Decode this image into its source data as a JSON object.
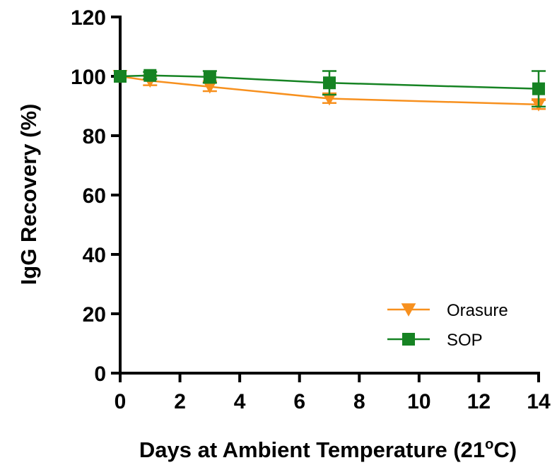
{
  "chart_data": {
    "type": "line",
    "xlabel": "Days at Ambient Temperature (21",
    "xlabel_sup": "o",
    "xlabel_end": "C)",
    "ylabel": "IgG Recovery (%)",
    "xlim": [
      0,
      14
    ],
    "ylim": [
      0,
      120
    ],
    "xticks": [
      0,
      2,
      4,
      6,
      8,
      10,
      12,
      14
    ],
    "yticks": [
      0,
      20,
      40,
      60,
      80,
      100,
      120
    ],
    "grid": false,
    "legend_position": "lower-right",
    "series": [
      {
        "name": "Orasure",
        "color": "#F7901E",
        "marker": "triangle-down",
        "x": [
          0,
          1,
          3,
          7,
          14
        ],
        "y": [
          100,
          98.5,
          96.5,
          92.5,
          90.5
        ],
        "error": [
          0,
          1.5,
          1.5,
          1.5,
          1.5
        ]
      },
      {
        "name": "SOP",
        "color": "#168323",
        "marker": "square",
        "x": [
          0,
          1,
          3,
          7,
          14
        ],
        "y": [
          100,
          100.3,
          99.8,
          97.8,
          95.8
        ],
        "error": [
          0,
          1.2,
          2.0,
          4.0,
          6.0
        ]
      }
    ]
  }
}
